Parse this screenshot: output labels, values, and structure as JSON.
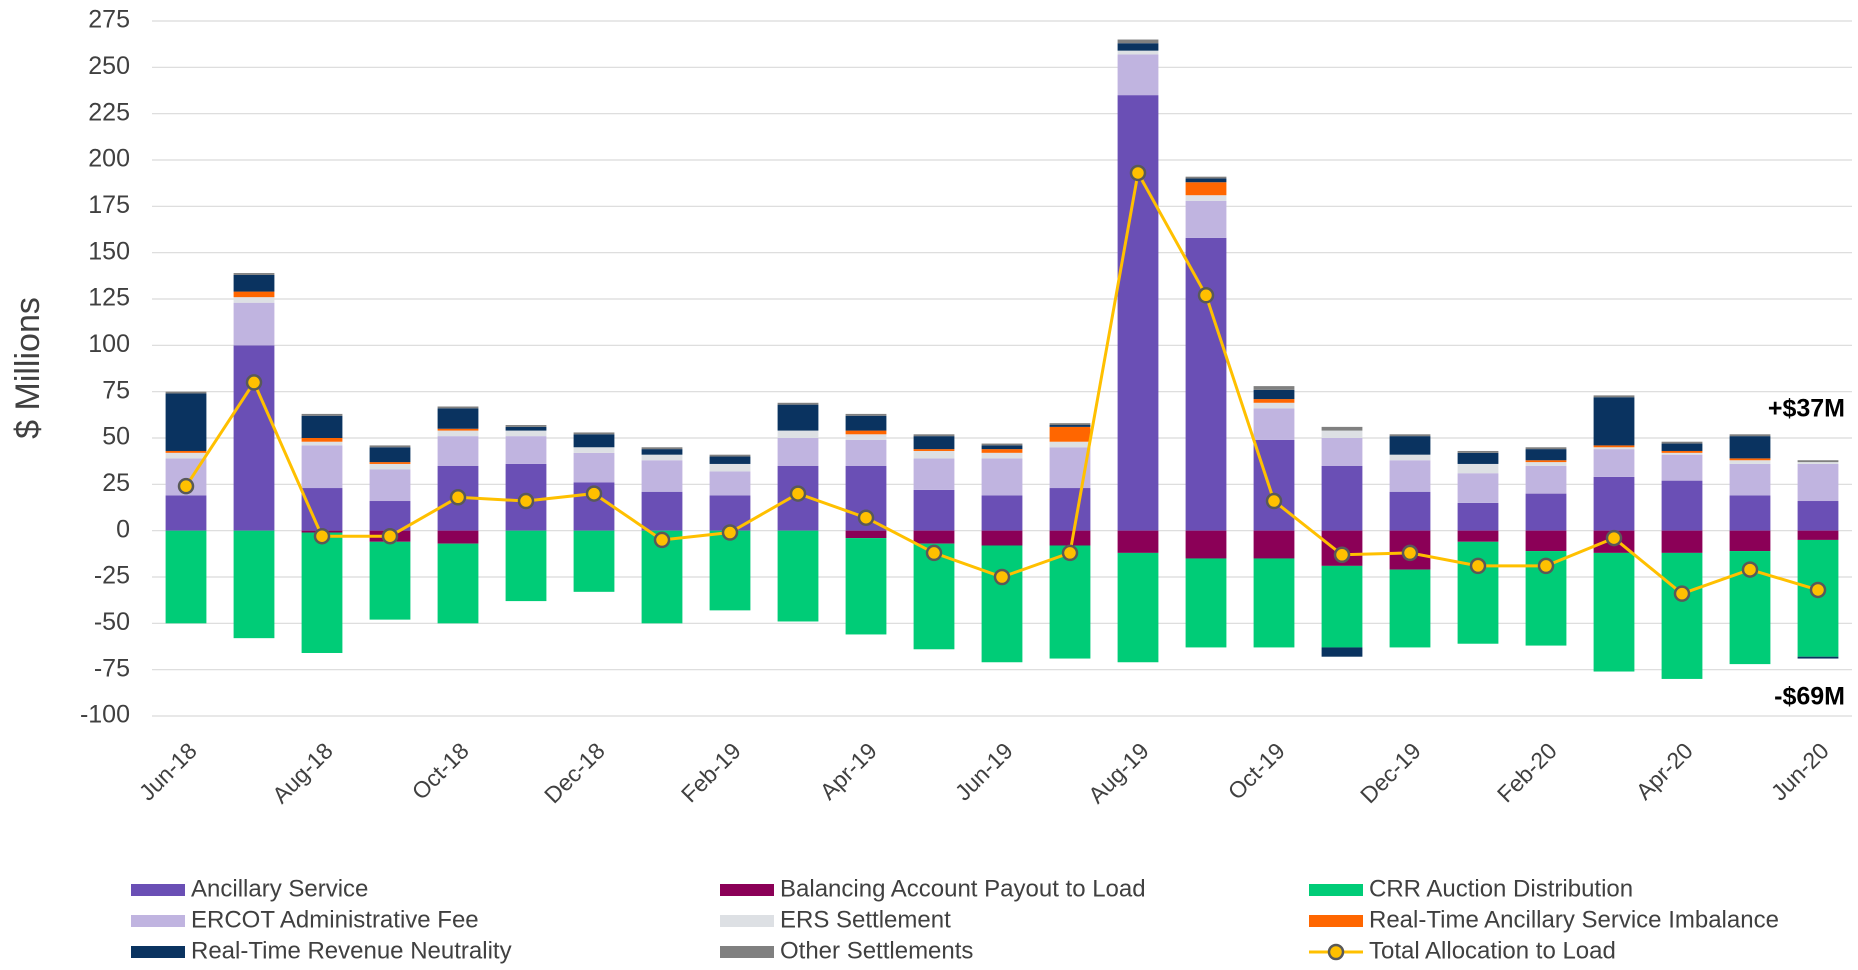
{
  "chart_data": {
    "type": "bar",
    "stacked": true,
    "y_label": "$ Millions",
    "categories": [
      "Jun-18",
      null,
      "Aug-18",
      null,
      "Oct-18",
      null,
      "Dec-18",
      null,
      "Feb-19",
      null,
      "Apr-19",
      null,
      "Jun-19",
      null,
      "Aug-19",
      null,
      "Oct-19",
      null,
      "Dec-19",
      null,
      "Feb-20",
      null,
      "Apr-20",
      null,
      "Jun-20"
    ],
    "series": [
      {
        "name": "Ancillary Service",
        "color": "#6a4fb5",
        "values": [
          19,
          100,
          23,
          16,
          35,
          36,
          26,
          21,
          19,
          35,
          35,
          22,
          19,
          23,
          235,
          158,
          49,
          35,
          21,
          15,
          20,
          29,
          27,
          19,
          16
        ]
      },
      {
        "name": "Balancing Account Payout to Load",
        "color": "#8b0057",
        "values": [
          0,
          0,
          -1,
          -6,
          -7,
          0,
          0,
          0,
          0,
          0,
          -4,
          -7,
          -8,
          -8,
          -12,
          -15,
          -15,
          -19,
          -21,
          -6,
          -11,
          -12,
          -12,
          -11,
          -5
        ]
      },
      {
        "name": "CRR Auction Distribution",
        "color": "#00cc77",
        "values": [
          -50,
          -58,
          -65,
          -42,
          -43,
          -38,
          -33,
          -50,
          -43,
          -49,
          -52,
          -57,
          -63,
          -61,
          -59,
          -48,
          -48,
          -44,
          -42,
          -55,
          -51,
          -64,
          -68,
          -61,
          -63
        ]
      },
      {
        "name": "ERCOT Administrative Fee",
        "color": "#c0b4e0",
        "values": [
          20,
          23,
          23,
          17,
          16,
          15,
          16,
          17,
          13,
          15,
          14,
          17,
          20,
          22,
          22,
          20,
          17,
          15,
          17,
          16,
          15,
          15,
          14,
          17,
          20
        ]
      },
      {
        "name": "ERS Settlement",
        "color": "#dde0e4",
        "values": [
          3,
          3,
          2,
          3,
          3,
          3,
          3,
          3,
          4,
          4,
          3,
          4,
          3,
          3,
          2,
          3,
          3,
          4,
          3,
          5,
          2,
          1,
          1,
          2,
          1
        ]
      },
      {
        "name": "Real-Time Ancillary Service Imbalance",
        "color": "#ff6600",
        "values": [
          1,
          3,
          2,
          1,
          1,
          0,
          0,
          0,
          0,
          0,
          2,
          1,
          2,
          8,
          0,
          7,
          2,
          0,
          0,
          0,
          1,
          1,
          1,
          1,
          0
        ]
      },
      {
        "name": "Real-Time Revenue Neutrality",
        "color": "#0a3360",
        "values": [
          31,
          9,
          12,
          8,
          11,
          2,
          7,
          3,
          4,
          14,
          8,
          7,
          2,
          1,
          4,
          2,
          5,
          -5,
          10,
          6,
          6,
          26,
          4,
          12,
          -1
        ]
      },
      {
        "name": "Other Settlements",
        "color": "#808080",
        "values": [
          1,
          1,
          1,
          1,
          1,
          1,
          1,
          1,
          1,
          1,
          1,
          1,
          1,
          1,
          2,
          1,
          2,
          2,
          1,
          1,
          1,
          1,
          1,
          1,
          1
        ]
      },
      {
        "name": "Total Allocation to Load",
        "type": "line",
        "color": "#ffc000",
        "marker_edge": "#595959",
        "values": [
          24,
          80,
          -3,
          -3,
          18,
          16,
          20,
          -5,
          -1,
          20,
          7,
          -12,
          -25,
          -12,
          193,
          127,
          16,
          -13,
          -12,
          -19,
          -19,
          -4,
          -34,
          -21,
          -32
        ]
      }
    ],
    "ylim": [
      -100,
      275
    ],
    "yticks": [
      -100,
      -75,
      -50,
      -25,
      0,
      25,
      50,
      75,
      100,
      125,
      150,
      175,
      200,
      225,
      250,
      275
    ],
    "grid": true,
    "legend": "bottom",
    "annotations": [
      "+$37M",
      "-$69M"
    ]
  }
}
